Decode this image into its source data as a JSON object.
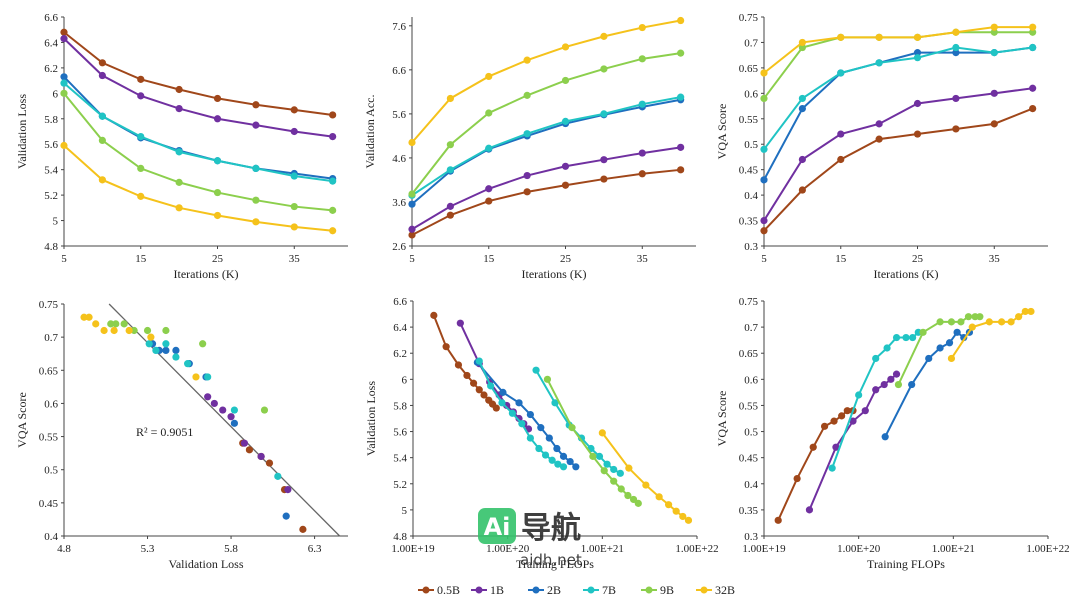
{
  "colors": {
    "0.5B": "#a0471a",
    "1B": "#7030a0",
    "2B": "#1f6fbf",
    "7B": "#20c4c4",
    "9B": "#8ccf4d",
    "32B": "#f5c21b"
  },
  "legend": [
    "0.5B",
    "1B",
    "2B",
    "7B",
    "9B",
    "32B"
  ],
  "watermark": {
    "logo": "Ai",
    "brand": "导航",
    "url": "aidh.net"
  },
  "chart_data": [
    {
      "type": "line",
      "xlabel": "Iterations (K)",
      "ylabel": "Validation Loss",
      "xlim": [
        5,
        42
      ],
      "ylim": [
        4.8,
        6.6
      ],
      "xticks": [
        5,
        15,
        25,
        35
      ],
      "xtick_labels": [
        "5",
        "15",
        "25",
        "35"
      ],
      "yticks": [
        4.8,
        5,
        5.2,
        5.4,
        5.6,
        5.8,
        6,
        6.2,
        6.4,
        6.6
      ],
      "ytick_labels": [
        "4.8",
        "5",
        "5.2",
        "5.4",
        "5.6",
        "5.8",
        "6",
        "6.2",
        "6.4",
        "6.6"
      ],
      "x": [
        5,
        10,
        15,
        20,
        25,
        30,
        35,
        40
      ],
      "series": [
        {
          "name": "0.5B",
          "values": [
            6.48,
            6.24,
            6.11,
            6.03,
            5.96,
            5.91,
            5.87,
            5.83
          ]
        },
        {
          "name": "1B",
          "values": [
            6.43,
            6.14,
            5.98,
            5.88,
            5.8,
            5.75,
            5.7,
            5.66
          ]
        },
        {
          "name": "2B",
          "values": [
            6.13,
            5.82,
            5.65,
            5.55,
            5.47,
            5.41,
            5.37,
            5.33
          ]
        },
        {
          "name": "7B",
          "values": [
            6.08,
            5.82,
            5.66,
            5.54,
            5.47,
            5.41,
            5.35,
            5.31
          ]
        },
        {
          "name": "9B",
          "values": [
            6.0,
            5.63,
            5.41,
            5.3,
            5.22,
            5.16,
            5.11,
            5.08
          ]
        },
        {
          "name": "32B",
          "values": [
            5.59,
            5.32,
            5.19,
            5.1,
            5.04,
            4.99,
            4.95,
            4.92
          ]
        }
      ]
    },
    {
      "type": "line",
      "xlabel": "Iterations (K)",
      "ylabel": "Validation Acc.",
      "xlim": [
        5,
        42
      ],
      "ylim": [
        2.6,
        7.8
      ],
      "xticks": [
        5,
        15,
        25,
        35
      ],
      "xtick_labels": [
        "5",
        "15",
        "25",
        "35"
      ],
      "yticks": [
        2.6,
        3.6,
        4.6,
        5.6,
        6.6,
        7.6
      ],
      "ytick_labels": [
        "2.6",
        "3.6",
        "4.6",
        "5.6",
        "6.6",
        "7.6"
      ],
      "x": [
        5,
        10,
        15,
        20,
        25,
        30,
        35,
        40
      ],
      "series": [
        {
          "name": "0.5B",
          "values": [
            2.85,
            3.3,
            3.62,
            3.83,
            3.98,
            4.12,
            4.24,
            4.33
          ]
        },
        {
          "name": "1B",
          "values": [
            2.98,
            3.5,
            3.9,
            4.2,
            4.41,
            4.56,
            4.71,
            4.84
          ]
        },
        {
          "name": "2B",
          "values": [
            3.55,
            4.3,
            4.8,
            5.1,
            5.38,
            5.58,
            5.76,
            5.92
          ]
        },
        {
          "name": "7B",
          "values": [
            3.75,
            4.33,
            4.82,
            5.15,
            5.43,
            5.6,
            5.82,
            5.98
          ]
        },
        {
          "name": "9B",
          "values": [
            3.78,
            4.9,
            5.62,
            6.02,
            6.36,
            6.62,
            6.85,
            6.98
          ]
        },
        {
          "name": "32B",
          "values": [
            4.95,
            5.95,
            6.45,
            6.82,
            7.12,
            7.36,
            7.56,
            7.72
          ]
        }
      ]
    },
    {
      "type": "line",
      "xlabel": "Iterations (K)",
      "ylabel": "VQA Score",
      "xlim": [
        5,
        42
      ],
      "ylim": [
        0.3,
        0.75
      ],
      "xticks": [
        5,
        15,
        25,
        35
      ],
      "xtick_labels": [
        "5",
        "15",
        "25",
        "35"
      ],
      "yticks": [
        0.3,
        0.35,
        0.4,
        0.45,
        0.5,
        0.55,
        0.6,
        0.65,
        0.7,
        0.75
      ],
      "ytick_labels": [
        "0.3",
        "0.35",
        "0.4",
        "0.45",
        "0.5",
        "0.55",
        "0.6",
        "0.65",
        "0.7",
        "0.75"
      ],
      "x": [
        5,
        10,
        15,
        20,
        25,
        30,
        35,
        40
      ],
      "series": [
        {
          "name": "0.5B",
          "values": [
            0.33,
            0.41,
            0.47,
            0.51,
            0.52,
            0.53,
            0.54,
            0.57
          ]
        },
        {
          "name": "1B",
          "values": [
            0.35,
            0.47,
            0.52,
            0.54,
            0.58,
            0.59,
            0.6,
            0.61
          ]
        },
        {
          "name": "2B",
          "values": [
            0.43,
            0.57,
            0.64,
            0.66,
            0.68,
            0.68,
            0.68,
            0.69
          ]
        },
        {
          "name": "7B",
          "values": [
            0.49,
            0.59,
            0.64,
            0.66,
            0.67,
            0.69,
            0.68,
            0.69
          ]
        },
        {
          "name": "9B",
          "values": [
            0.59,
            0.69,
            0.71,
            0.71,
            0.71,
            0.72,
            0.72,
            0.72
          ]
        },
        {
          "name": "32B",
          "values": [
            0.64,
            0.7,
            0.71,
            0.71,
            0.71,
            0.72,
            0.73,
            0.73
          ]
        }
      ]
    },
    {
      "type": "scatter",
      "xlabel": "Validation Loss",
      "ylabel": "VQA Score",
      "annotation": "R² = 0.9051",
      "xlim": [
        4.8,
        6.5
      ],
      "ylim": [
        0.4,
        0.75
      ],
      "xticks": [
        4.8,
        5.3,
        5.8,
        6.3
      ],
      "xtick_labels": [
        "4.8",
        "5.3",
        "5.8",
        "6.3"
      ],
      "yticks": [
        0.4,
        0.45,
        0.5,
        0.55,
        0.6,
        0.65,
        0.7,
        0.75
      ],
      "ytick_labels": [
        "0.4",
        "0.45",
        "0.5",
        "0.55",
        "0.6",
        "0.65",
        "0.7",
        "0.75"
      ],
      "trendline": [
        [
          5.07,
          0.75
        ],
        [
          6.45,
          0.4
        ]
      ],
      "series": [
        {
          "name": "0.5B",
          "x": [
            6.23,
            6.12,
            6.03,
            5.98,
            5.91,
            5.87
          ],
          "y": [
            0.41,
            0.47,
            0.51,
            0.52,
            0.53,
            0.54
          ]
        },
        {
          "name": "1B",
          "x": [
            6.14,
            5.98,
            5.88,
            5.8,
            5.75,
            5.7,
            5.66
          ],
          "y": [
            0.47,
            0.52,
            0.54,
            0.58,
            0.59,
            0.6,
            0.61
          ]
        },
        {
          "name": "2B",
          "x": [
            6.13,
            5.82,
            5.65,
            5.55,
            5.47,
            5.41,
            5.37,
            5.33
          ],
          "y": [
            0.43,
            0.57,
            0.64,
            0.66,
            0.68,
            0.68,
            0.68,
            0.69
          ]
        },
        {
          "name": "7B",
          "x": [
            6.08,
            5.82,
            5.66,
            5.54,
            5.47,
            5.41,
            5.35,
            5.31
          ],
          "y": [
            0.49,
            0.59,
            0.64,
            0.66,
            0.67,
            0.69,
            0.68,
            0.69
          ]
        },
        {
          "name": "9B",
          "x": [
            6.0,
            5.63,
            5.41,
            5.3,
            5.22,
            5.16,
            5.11,
            5.08
          ],
          "y": [
            0.59,
            0.69,
            0.71,
            0.71,
            0.71,
            0.72,
            0.72,
            0.72
          ]
        },
        {
          "name": "32B",
          "x": [
            5.59,
            5.32,
            5.19,
            5.1,
            5.04,
            4.99,
            4.95,
            4.92
          ],
          "y": [
            0.64,
            0.7,
            0.71,
            0.71,
            0.71,
            0.72,
            0.73,
            0.73
          ]
        }
      ]
    },
    {
      "type": "line",
      "xscale": "log",
      "xlabel": "Training FLOPs",
      "ylabel": "Validation Loss",
      "xlim_exp": [
        19,
        22
      ],
      "ylim": [
        4.8,
        6.6
      ],
      "xticks_exp": [
        19,
        20,
        21,
        22
      ],
      "xtick_labels": [
        "1.00E+19",
        "1.00E+20",
        "1.00E+21",
        "1.00E+22"
      ],
      "yticks": [
        4.8,
        5,
        5.2,
        5.4,
        5.6,
        5.8,
        6,
        6.2,
        6.4,
        6.6
      ],
      "ytick_labels": [
        "4.8",
        "5",
        "5.2",
        "5.4",
        "5.6",
        "5.8",
        "6",
        "6.2",
        "6.4",
        "6.6"
      ],
      "series": [
        {
          "name": "0.5B",
          "x_exp": [
            19.22,
            19.35,
            19.48,
            19.57,
            19.64,
            19.7,
            19.75,
            19.8,
            19.84,
            19.88
          ],
          "values": [
            6.49,
            6.25,
            6.11,
            6.03,
            5.97,
            5.92,
            5.88,
            5.84,
            5.81,
            5.78
          ]
        },
        {
          "name": "1B",
          "x_exp": [
            19.5,
            19.7,
            19.81,
            19.91,
            19.99,
            20.06,
            20.12,
            20.17,
            20.22
          ],
          "values": [
            6.43,
            6.12,
            5.98,
            5.88,
            5.8,
            5.75,
            5.7,
            5.66,
            5.62
          ]
        },
        {
          "name": "2B",
          "x_exp": [
            19.68,
            19.95,
            20.12,
            20.24,
            20.35,
            20.44,
            20.52,
            20.59,
            20.66,
            20.72
          ],
          "values": [
            6.13,
            5.9,
            5.82,
            5.73,
            5.63,
            5.55,
            5.47,
            5.41,
            5.37,
            5.33
          ]
        },
        {
          "name": "7B",
          "x_exp": [
            19.7,
            19.82,
            19.94,
            20.05,
            20.15,
            20.24,
            20.33,
            20.4,
            20.47,
            20.53,
            20.59
          ],
          "values": [
            6.14,
            5.95,
            5.82,
            5.74,
            5.66,
            5.55,
            5.47,
            5.42,
            5.38,
            5.35,
            5.33
          ]
        },
        {
          "name": "7B-b",
          "color_of": "7B",
          "x_exp": [
            20.3,
            20.5,
            20.65,
            20.78,
            20.88,
            20.97,
            21.05,
            21.12,
            21.19
          ],
          "values": [
            6.07,
            5.82,
            5.65,
            5.55,
            5.47,
            5.41,
            5.35,
            5.31,
            5.28
          ]
        },
        {
          "name": "9B",
          "x_exp": [
            20.42,
            20.68,
            20.9,
            21.02,
            21.12,
            21.2,
            21.27,
            21.33,
            21.38
          ],
          "values": [
            6.0,
            5.63,
            5.41,
            5.3,
            5.22,
            5.16,
            5.11,
            5.08,
            5.05
          ]
        },
        {
          "name": "32B",
          "x_exp": [
            21.0,
            21.28,
            21.46,
            21.6,
            21.7,
            21.78,
            21.85,
            21.91
          ],
          "values": [
            5.59,
            5.32,
            5.19,
            5.1,
            5.04,
            4.99,
            4.95,
            4.92
          ]
        }
      ]
    },
    {
      "type": "line",
      "xscale": "log",
      "xlabel": "Training FLOPs",
      "ylabel": "VQA Score",
      "xlim_exp": [
        19,
        22
      ],
      "ylim": [
        0.3,
        0.75
      ],
      "xticks_exp": [
        19,
        20,
        21,
        22
      ],
      "xtick_labels": [
        "1.00E+19",
        "1.00E+20",
        "1.00E+21",
        "1.00E+22"
      ],
      "yticks": [
        0.3,
        0.35,
        0.4,
        0.45,
        0.5,
        0.55,
        0.6,
        0.65,
        0.7,
        0.75
      ],
      "ytick_labels": [
        "0.3",
        "0.35",
        "0.4",
        "0.45",
        "0.5",
        "0.55",
        "0.6",
        "0.65",
        "0.7",
        "0.75"
      ],
      "series": [
        {
          "name": "0.5B",
          "x_exp": [
            19.15,
            19.35,
            19.52,
            19.64,
            19.74,
            19.82,
            19.88,
            19.94
          ],
          "values": [
            0.33,
            0.41,
            0.47,
            0.51,
            0.52,
            0.53,
            0.54,
            0.54
          ]
        },
        {
          "name": "1B",
          "x_exp": [
            19.48,
            19.76,
            19.94,
            20.07,
            20.18,
            20.27,
            20.34,
            20.4
          ],
          "values": [
            0.35,
            0.47,
            0.52,
            0.54,
            0.58,
            0.59,
            0.6,
            0.61
          ]
        },
        {
          "name": "2B",
          "x_exp": [
            20.28,
            20.56,
            20.74,
            20.86,
            20.96,
            21.04,
            21.11,
            21.17
          ],
          "values": [
            0.49,
            0.59,
            0.64,
            0.66,
            0.67,
            0.69,
            0.68,
            0.69
          ]
        },
        {
          "name": "7B",
          "x_exp": [
            19.72,
            20.0,
            20.18,
            20.3,
            20.4,
            20.5,
            20.57,
            20.63
          ],
          "values": [
            0.43,
            0.57,
            0.64,
            0.66,
            0.68,
            0.68,
            0.68,
            0.69
          ]
        },
        {
          "name": "9B",
          "x_exp": [
            20.42,
            20.68,
            20.86,
            20.98,
            21.08,
            21.16,
            21.23,
            21.28
          ],
          "values": [
            0.59,
            0.69,
            0.71,
            0.71,
            0.71,
            0.72,
            0.72,
            0.72
          ]
        },
        {
          "name": "32B",
          "x_exp": [
            20.98,
            21.2,
            21.38,
            21.51,
            21.61,
            21.69,
            21.76,
            21.82
          ],
          "values": [
            0.64,
            0.7,
            0.71,
            0.71,
            0.71,
            0.72,
            0.73,
            0.73
          ]
        }
      ]
    }
  ]
}
